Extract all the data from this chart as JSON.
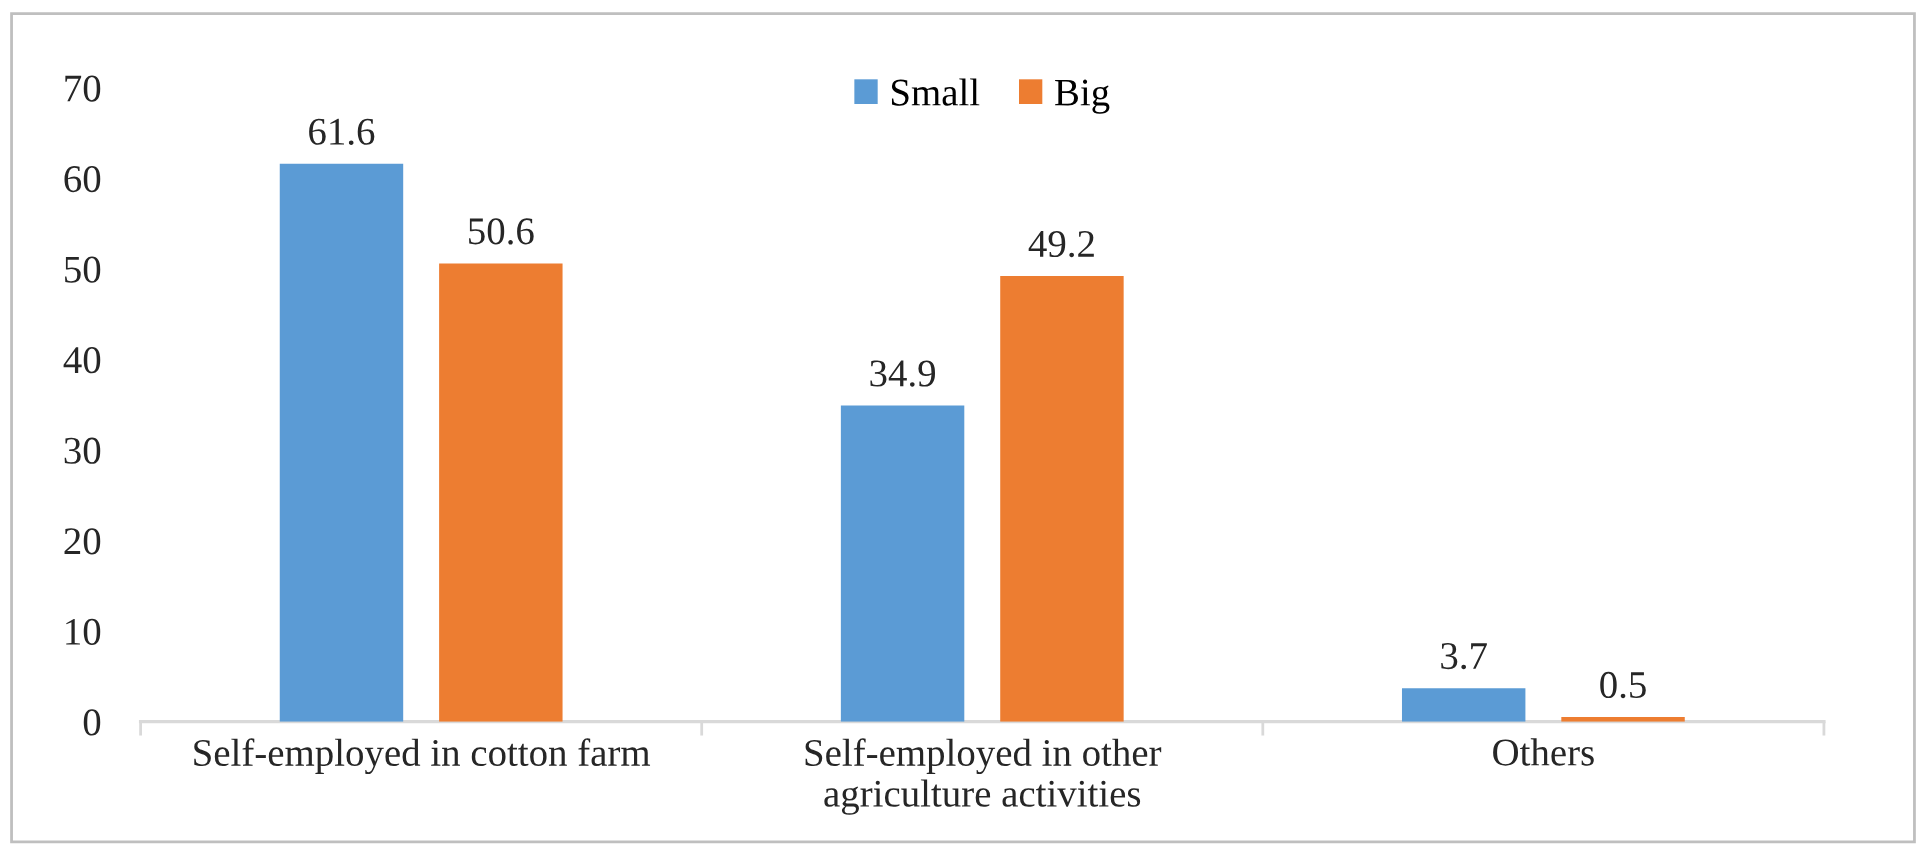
{
  "chart_data": {
    "type": "bar",
    "categories": [
      "Self-employed in cotton farm",
      "Self-employed in other\nagriculture activities",
      "Others"
    ],
    "series": [
      {
        "name": "Small",
        "color": "#5b9bd5",
        "values": [
          61.6,
          34.9,
          3.7
        ]
      },
      {
        "name": "Big",
        "color": "#ed7d31",
        "values": [
          50.6,
          49.2,
          0.5
        ]
      }
    ],
    "ylim": [
      0,
      70
    ],
    "yticks": [
      0,
      10,
      20,
      30,
      40,
      50,
      60,
      70
    ],
    "data_labels": true,
    "legend": "top",
    "grid": false
  }
}
